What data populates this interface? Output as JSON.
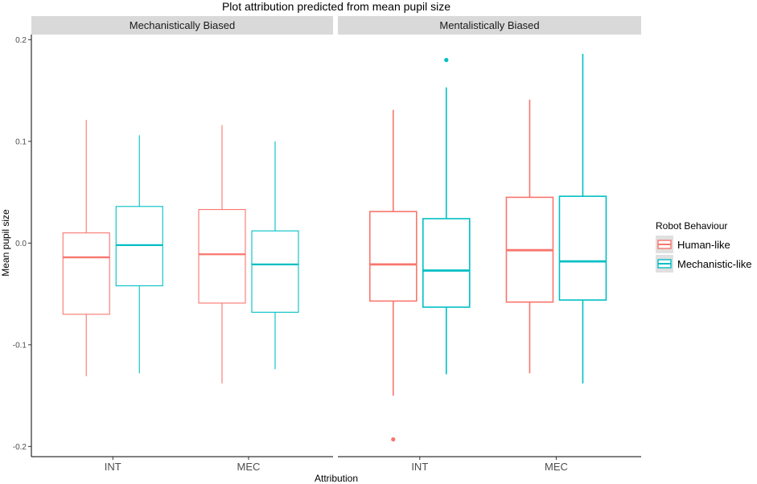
{
  "chart_data": {
    "type": "boxplot",
    "title": "Plot attribution predicted from mean pupil size",
    "xlabel": "Attribution",
    "ylabel": "Mean pupil size",
    "ylim": [
      -0.21,
      0.205
    ],
    "yticks": [
      0.2,
      0.1,
      0.0,
      -0.1,
      -0.2
    ],
    "ytick_labels": [
      "0.2",
      "0.1",
      "0.0",
      "-0.1",
      "-0.2"
    ],
    "categories": [
      "INT",
      "MEC"
    ],
    "legend": {
      "title": "Robot Behaviour",
      "position": "right",
      "entries": [
        {
          "label": "Human-like",
          "color": "#F8766D"
        },
        {
          "label": "Mechanistic-like",
          "color": "#00BFC4"
        }
      ]
    },
    "panels": [
      {
        "label": "Mechanistically Biased",
        "groups": [
          {
            "category": "INT",
            "series": "Human-like",
            "min": -0.131,
            "q1": -0.07,
            "median": -0.014,
            "q3": 0.01,
            "max": 0.121,
            "outliers": []
          },
          {
            "category": "INT",
            "series": "Mechanistic-like",
            "min": -0.128,
            "q1": -0.042,
            "median": -0.002,
            "q3": 0.036,
            "max": 0.106,
            "outliers": []
          },
          {
            "category": "MEC",
            "series": "Human-like",
            "min": -0.138,
            "q1": -0.059,
            "median": -0.011,
            "q3": 0.033,
            "max": 0.116,
            "outliers": []
          },
          {
            "category": "MEC",
            "series": "Mechanistic-like",
            "min": -0.124,
            "q1": -0.068,
            "median": -0.021,
            "q3": 0.012,
            "max": 0.1,
            "outliers": []
          }
        ]
      },
      {
        "label": "Mentalistically Biased",
        "groups": [
          {
            "category": "INT",
            "series": "Human-like",
            "min": -0.15,
            "q1": -0.057,
            "median": -0.021,
            "q3": 0.031,
            "max": 0.131,
            "outliers": [
              -0.193
            ]
          },
          {
            "category": "INT",
            "series": "Mechanistic-like",
            "min": -0.129,
            "q1": -0.063,
            "median": -0.027,
            "q3": 0.024,
            "max": 0.153,
            "outliers": [
              0.18
            ]
          },
          {
            "category": "MEC",
            "series": "Human-like",
            "min": -0.128,
            "q1": -0.058,
            "median": -0.007,
            "q3": 0.045,
            "max": 0.141,
            "outliers": []
          },
          {
            "category": "MEC",
            "series": "Mechanistic-like",
            "min": -0.138,
            "q1": -0.056,
            "median": -0.018,
            "q3": 0.046,
            "max": 0.186,
            "outliers": []
          }
        ]
      }
    ]
  }
}
